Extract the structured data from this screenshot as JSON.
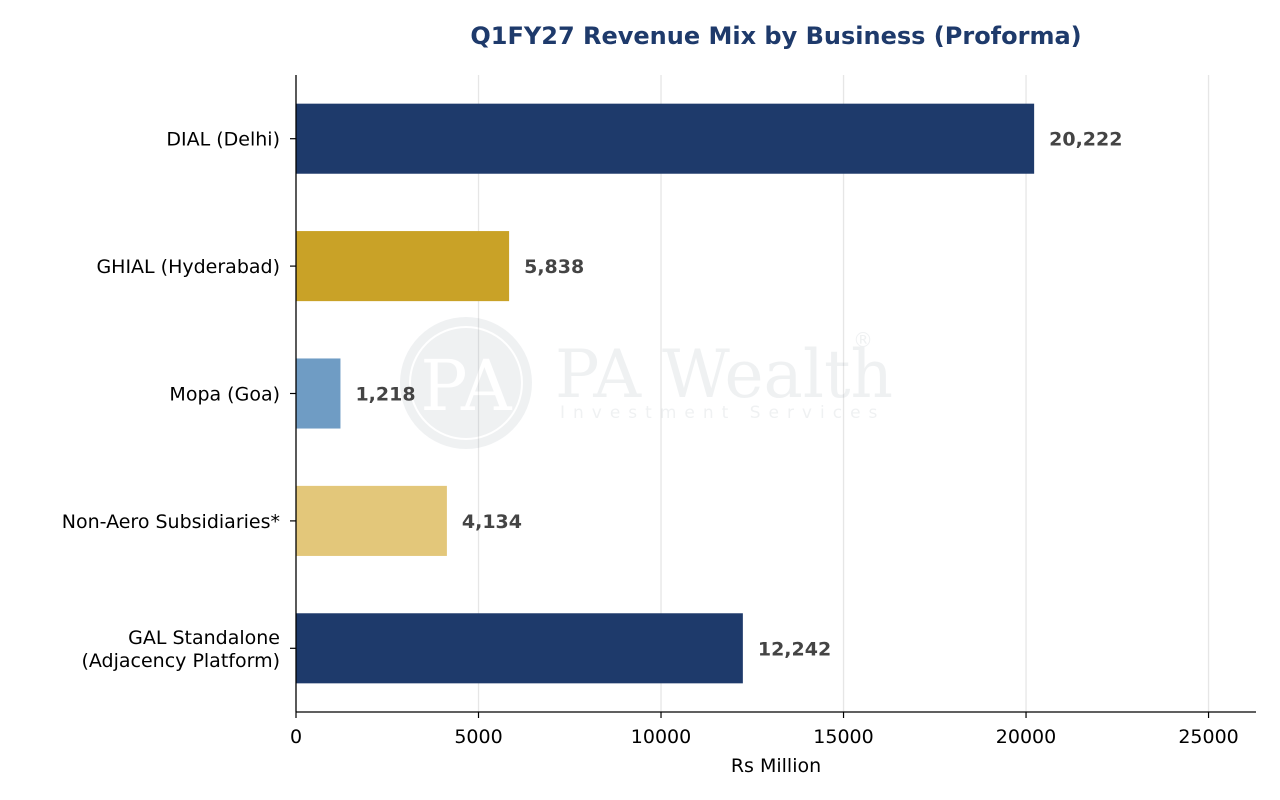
{
  "chart_data": {
    "type": "bar",
    "orientation": "horizontal",
    "title": "Q1FY27 Revenue Mix by Business (Proforma)",
    "xlabel": "Rs Million",
    "ylabel": "",
    "xlim": [
      0,
      26300
    ],
    "xticks": [
      0,
      5000,
      10000,
      15000,
      20000,
      25000
    ],
    "xtick_labels": [
      "0",
      "5000",
      "10000",
      "15000",
      "20000",
      "25000"
    ],
    "grid": "vertical",
    "categories": [
      [
        "DIAL (Delhi)"
      ],
      [
        "GHIAL (Hyderabad)"
      ],
      [
        "Mopa (Goa)"
      ],
      [
        "Non-Aero Subsidiaries*"
      ],
      [
        "GAL Standalone",
        "(Adjacency Platform)"
      ]
    ],
    "values": [
      20222,
      5838,
      1218,
      4134,
      12242
    ],
    "value_labels": [
      "20,222",
      "5,838",
      "1,218",
      "4,134",
      "12,242"
    ],
    "colors": [
      "#1e3a6b",
      "#c9a227",
      "#6f9cc4",
      "#e3c77a",
      "#1e3a6b"
    ]
  },
  "colors": {
    "title": "#1e3a6b",
    "grid": "#e6e6e6",
    "axis": "#000000",
    "data_label": "#444444"
  },
  "watermark": {
    "logo_text": "PA",
    "brand": "PA Wealth",
    "tagline": "Investment Services",
    "registered": "®"
  }
}
